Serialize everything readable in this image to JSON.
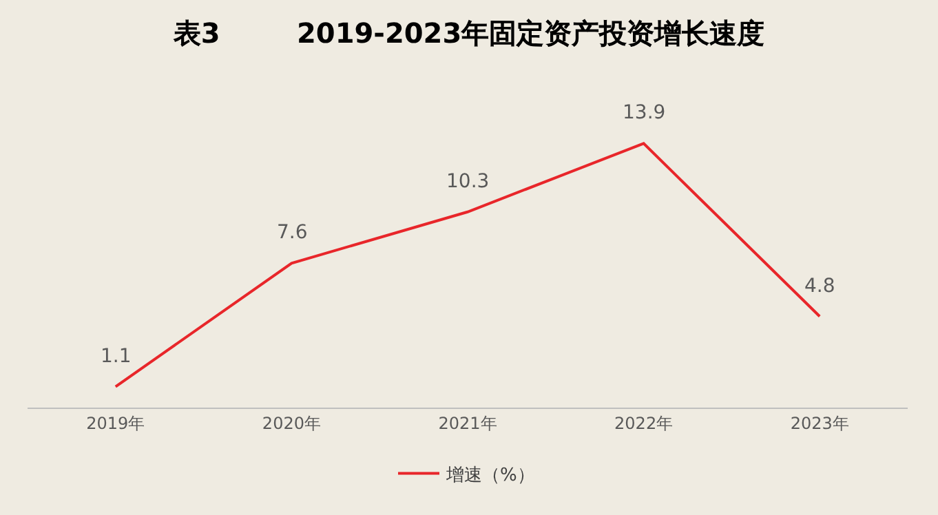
{
  "chart_data": {
    "type": "line",
    "title": "表3        2019-2023年固定资产投资增长速度",
    "categories": [
      "2019年",
      "2020年",
      "2021年",
      "2022年",
      "2023年"
    ],
    "series": [
      {
        "name": "增速（%）",
        "color": "#e8262a",
        "values": [
          1.1,
          7.6,
          10.3,
          13.9,
          4.8
        ]
      }
    ],
    "data_labels": true,
    "grid": false,
    "legend": "bottom",
    "marker": "none",
    "line_style": "solid"
  }
}
